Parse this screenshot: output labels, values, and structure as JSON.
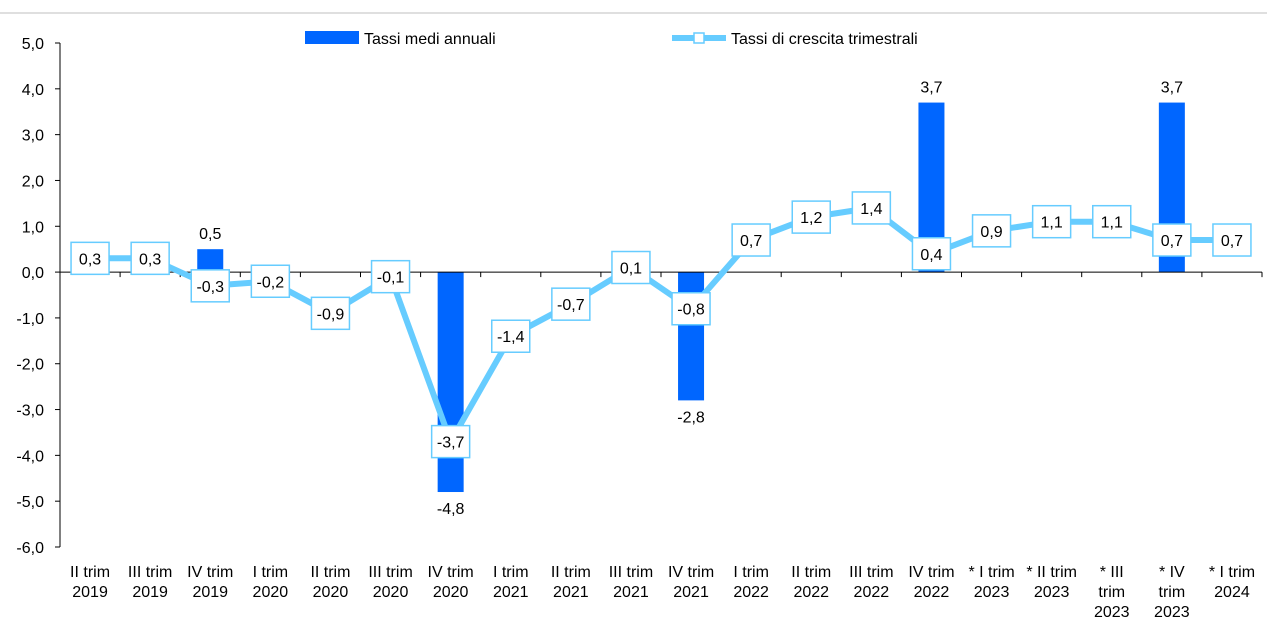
{
  "chart_data": {
    "type": "bar",
    "categories": [
      [
        "II trim",
        "2019"
      ],
      [
        "III trim",
        "2019"
      ],
      [
        "IV trim",
        "2019"
      ],
      [
        "I trim",
        "2020"
      ],
      [
        "II trim",
        "2020"
      ],
      [
        "III trim",
        "2020"
      ],
      [
        "IV trim",
        "2020"
      ],
      [
        "I trim",
        "2021"
      ],
      [
        "II trim",
        "2021"
      ],
      [
        "III trim",
        "2021"
      ],
      [
        "IV trim",
        "2021"
      ],
      [
        "I trim",
        "2022"
      ],
      [
        "II trim",
        "2022"
      ],
      [
        "III trim",
        "2022"
      ],
      [
        "IV trim",
        "2022"
      ],
      [
        "* I trim",
        "2023"
      ],
      [
        "* II trim",
        "2023"
      ],
      [
        "* III",
        "trim",
        "2023"
      ],
      [
        "* IV",
        "trim",
        "2023"
      ],
      [
        "* I trim",
        "2024"
      ]
    ],
    "series": [
      {
        "name": "Tassi medi annuali",
        "type": "bar",
        "color": "#0066ff",
        "values": [
          null,
          null,
          0.5,
          null,
          null,
          null,
          -4.8,
          null,
          null,
          null,
          -2.8,
          null,
          null,
          null,
          3.7,
          null,
          null,
          null,
          3.7,
          null
        ],
        "labels": [
          null,
          null,
          "0,5",
          null,
          null,
          null,
          "-4,8",
          null,
          null,
          null,
          "-2,8",
          null,
          null,
          null,
          "3,7",
          null,
          null,
          null,
          "3,7",
          null
        ]
      },
      {
        "name": "Tassi di crescita trimestrali",
        "type": "line",
        "color": "#66ccff",
        "values": [
          0.3,
          0.3,
          -0.3,
          -0.2,
          -0.9,
          -0.1,
          -3.7,
          -1.4,
          -0.7,
          0.1,
          -0.8,
          0.7,
          1.2,
          1.4,
          0.4,
          0.9,
          1.1,
          1.1,
          0.7,
          0.7
        ],
        "labels": [
          "0,3",
          "0,3",
          "-0,3",
          "-0,2",
          "-0,9",
          "-0,1",
          "-3,7",
          "-1,4",
          "-0,7",
          "0,1",
          "-0,8",
          "0,7",
          "1,2",
          "1,4",
          "0,4",
          "0,9",
          "1,1",
          "1,1",
          "0,7",
          "0,7"
        ]
      }
    ],
    "ylim": [
      -6,
      5
    ],
    "yticks": [
      5,
      4,
      3,
      2,
      1,
      0,
      -1,
      -2,
      -3,
      -4,
      -5,
      -6
    ],
    "ytick_labels": [
      "5,0",
      "4,0",
      "3,0",
      "2,0",
      "1,0",
      "0,0",
      "-1,0",
      "-2,0",
      "-3,0",
      "-4,0",
      "-5,0",
      "-6,0"
    ],
    "grid": false,
    "legend_position": "top"
  }
}
